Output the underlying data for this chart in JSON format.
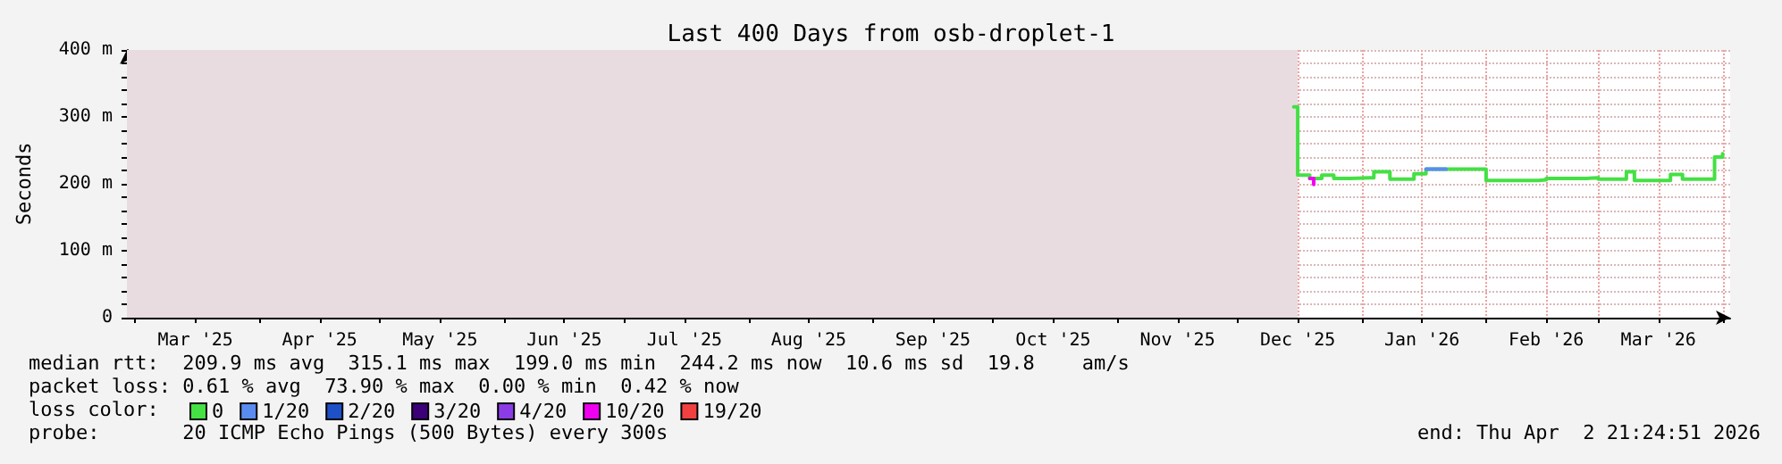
{
  "chart_data": {
    "type": "step",
    "title": "Last 400 Days from osb-droplet-1",
    "ylabel": "Seconds",
    "xlim": [
      "2025-02-26T21:24",
      "2026-04-02T21:24"
    ],
    "xticks": [
      {
        "value": "2025-03-01",
        "label": null
      },
      {
        "value": "2025-03-16",
        "label": "Mar '25"
      },
      {
        "value": "2025-04-01",
        "label": null
      },
      {
        "value": "2025-04-16",
        "label": "Apr '25"
      },
      {
        "value": "2025-05-01",
        "label": null
      },
      {
        "value": "2025-05-16",
        "label": "May '25"
      },
      {
        "value": "2025-06-01",
        "label": null
      },
      {
        "value": "2025-06-16",
        "label": "Jun '25"
      },
      {
        "value": "2025-07-01",
        "label": null
      },
      {
        "value": "2025-07-16",
        "label": "Jul '25"
      },
      {
        "value": "2025-08-01",
        "label": null
      },
      {
        "value": "2025-08-16",
        "label": "Aug '25"
      },
      {
        "value": "2025-09-01",
        "label": null
      },
      {
        "value": "2025-09-16",
        "label": "Sep '25"
      },
      {
        "value": "2025-10-01",
        "label": null
      },
      {
        "value": "2025-10-16",
        "label": "Oct '25"
      },
      {
        "value": "2025-11-01",
        "label": null
      },
      {
        "value": "2025-11-16",
        "label": "Nov '25"
      },
      {
        "value": "2025-12-01",
        "label": null
      },
      {
        "value": "2025-12-16",
        "label": "Dec '25"
      },
      {
        "value": "2026-01-01",
        "label": null
      },
      {
        "value": "2026-01-16",
        "label": "Jan '26"
      },
      {
        "value": "2026-02-01",
        "label": null
      },
      {
        "value": "2026-02-16",
        "label": "Feb '26"
      },
      {
        "value": "2026-03-01",
        "label": null
      },
      {
        "value": "2026-03-16",
        "label": "Mar '26"
      },
      {
        "value": "2026-04-01",
        "label": null
      }
    ],
    "ylim": [
      0,
      400
    ],
    "yticks": [
      0,
      {
        "value": 20,
        "label": null
      },
      {
        "value": 40,
        "label": null
      },
      {
        "value": 60,
        "label": null
      },
      {
        "value": 80,
        "label": null
      },
      {
        "value": 100,
        "label": "100 m"
      },
      {
        "value": 120,
        "label": null
      },
      {
        "value": 140,
        "label": null
      },
      {
        "value": 160,
        "label": null
      },
      {
        "value": 180,
        "label": null
      },
      {
        "value": 200,
        "label": "200 m"
      },
      {
        "value": 220,
        "label": null
      },
      {
        "value": 240,
        "label": null
      },
      {
        "value": 260,
        "label": null
      },
      {
        "value": 280,
        "label": null
      },
      {
        "value": 300,
        "label": "300 m"
      },
      {
        "value": 320,
        "label": null
      },
      {
        "value": 340,
        "label": null
      },
      {
        "value": 360,
        "label": null
      },
      {
        "value": 380,
        "label": null
      },
      {
        "value": 400,
        "label": "400 m"
      }
    ],
    "grid": true,
    "line_style": "solid",
    "marker": "none",
    "legend": "bottom left",
    "legend_title": "loss color:",
    "bands": [
      {
        "axis": "x",
        "from": "2025-02-26T21:24",
        "to": "2025-12-16",
        "color": "#e8dce1"
      }
    ],
    "series": [
      {
        "name": "0",
        "color": "#44e044",
        "x": [
          "2025-12-15",
          "2025-12-16",
          "2025-12-19",
          "2025-12-22",
          "2025-12-25",
          "2025-12-29",
          "2026-01-03",
          "2026-01-04",
          "2026-01-08",
          "2026-01-14",
          "2026-01-17",
          "2026-01-30",
          "2026-02-01",
          "2026-02-14",
          "2026-02-16",
          "2026-02-26",
          "2026-03-01",
          "2026-03-08",
          "2026-03-10",
          "2026-03-19",
          "2026-03-22",
          "2026-03-29",
          "2026-03-30",
          "2026-04-01"
        ],
        "values": [
          315,
          213,
          208,
          213,
          208,
          209,
          209,
          218,
          207,
          215,
          222,
          222,
          205,
          206,
          208,
          209,
          207,
          218,
          205,
          214,
          207,
          207,
          240,
          245
        ]
      },
      {
        "name": "1/20",
        "color": "#5a8cf0",
        "x": [
          "2026-01-17",
          "2026-01-22"
        ],
        "values": [
          222,
          222
        ]
      },
      {
        "name": "2/20",
        "color": "#1e50c8"
      },
      {
        "name": "3/20",
        "color": "#3c0078"
      },
      {
        "name": "4/20",
        "color": "#8c3ce6"
      },
      {
        "name": "10/20",
        "color": "#f000f0",
        "x": [
          "2025-12-19",
          "2025-12-20"
        ],
        "values": [
          208,
          199
        ]
      },
      {
        "name": "19/20",
        "color": "#f04040"
      }
    ],
    "annotations": [
      "median rtt:  209.9 ms avg  315.1 ms max  199.0 ms min  244.2 ms now  10.6 ms sd  19.8    am/s",
      "packet loss: 0.61 % avg  73.90 % max  0.00 % min  0.42 % now",
      "probe:       20 ICMP Echo Pings (500 Bytes) every 300s",
      "end: Thu Apr  2 21:24:51 2026"
    ]
  }
}
